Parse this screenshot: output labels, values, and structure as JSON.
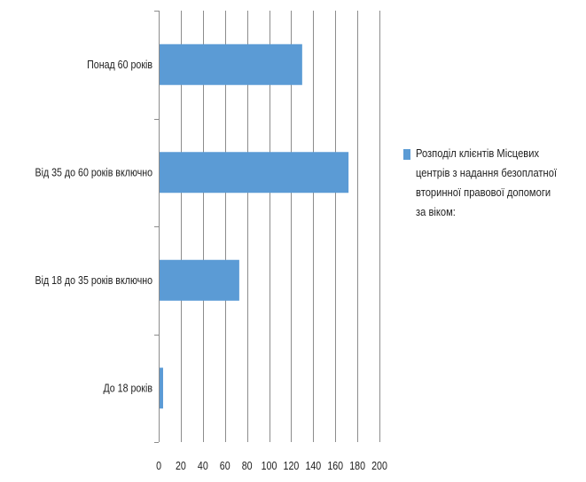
{
  "chart_data": {
    "type": "bar",
    "orientation": "horizontal",
    "categories": [
      "Понад 60 років",
      "Від 35 до 60 років включно",
      "Від 18 до 35 років включно",
      "До 18 років"
    ],
    "series": [
      {
        "name": "Розподіл клієнтів Місцевих центрів з надання безоплатної вторинної правової допомоги за віком:",
        "values": [
          130,
          172,
          73,
          4
        ],
        "color": "#5b9bd5"
      }
    ],
    "xlim": [
      0,
      200
    ],
    "x_ticks": [
      0,
      20,
      40,
      60,
      80,
      100,
      120,
      140,
      160,
      180,
      200
    ],
    "x_tick_labels": [
      "0",
      "20",
      "40",
      "60",
      "80",
      "100",
      "120",
      "140",
      "160",
      "180",
      "200"
    ],
    "grid": "vertical",
    "legend_position": "right",
    "title": "",
    "xlabel": "",
    "ylabel": ""
  }
}
